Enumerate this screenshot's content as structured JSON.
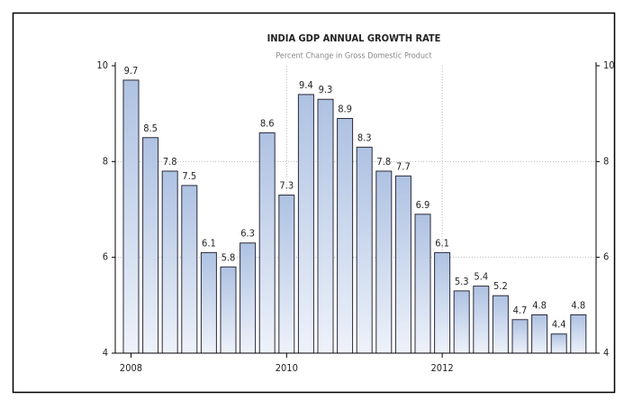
{
  "chart_data": {
    "type": "bar",
    "title": "INDIA GDP ANNUAL GROWTH RATE",
    "subtitle": "Percent Change in Gross Domestic Product",
    "categories": [
      "2008",
      null,
      null,
      null,
      null,
      null,
      null,
      null,
      "2010",
      null,
      null,
      null,
      null,
      null,
      null,
      null,
      "2012",
      null,
      null,
      null,
      null,
      null,
      null,
      null
    ],
    "values": [
      9.7,
      8.5,
      7.8,
      7.5,
      6.1,
      5.8,
      6.3,
      8.6,
      7.3,
      9.4,
      9.3,
      8.9,
      8.3,
      7.8,
      7.7,
      6.9,
      6.1,
      5.3,
      5.4,
      5.2,
      4.7,
      4.8,
      4.4,
      4.8
    ],
    "color": "#aec2e2",
    "ylim": [
      4,
      10
    ],
    "yticks": [
      4,
      6,
      8,
      10
    ],
    "grid": true
  }
}
